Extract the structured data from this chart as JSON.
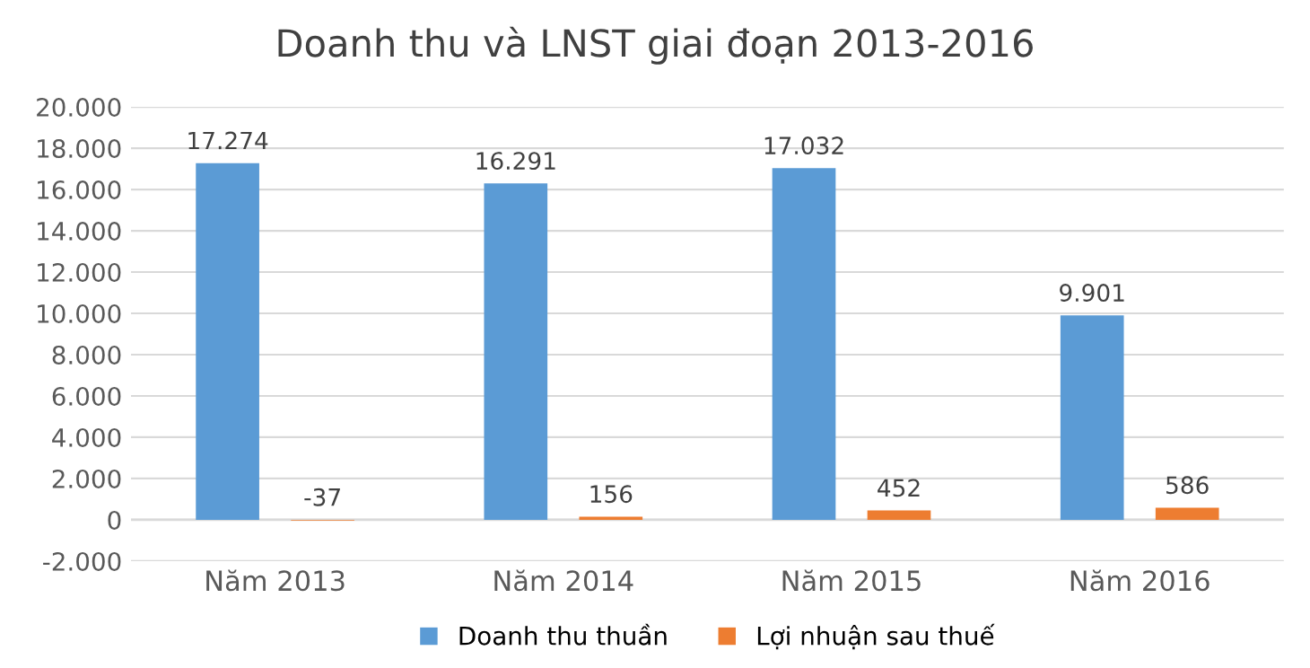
{
  "chart_data": {
    "type": "bar",
    "title": "Doanh thu và LNST giai đoạn 2013-2016",
    "categories": [
      "Năm 2013",
      "Năm 2014",
      "Năm 2015",
      "Năm 2016"
    ],
    "series": [
      {
        "name": "Doanh thu thuần",
        "color": "#5b9bd5",
        "values": [
          17274,
          16291,
          17032,
          9901
        ],
        "value_labels": [
          "17.274",
          "16.291",
          "17.032",
          "9.901"
        ]
      },
      {
        "name": "Lợi nhuận sau thuế",
        "color": "#ed7d31",
        "values": [
          -37,
          156,
          452,
          586
        ],
        "value_labels": [
          "-37",
          "156",
          "452",
          "586"
        ]
      }
    ],
    "ylim": [
      -2000,
      20000
    ],
    "yticks": [
      {
        "value": -2000,
        "label": "-2.000"
      },
      {
        "value": 0,
        "label": "0"
      },
      {
        "value": 2000,
        "label": "2.000"
      },
      {
        "value": 4000,
        "label": "4.000"
      },
      {
        "value": 6000,
        "label": "6.000"
      },
      {
        "value": 8000,
        "label": "8.000"
      },
      {
        "value": 10000,
        "label": "10.000"
      },
      {
        "value": 12000,
        "label": "12.000"
      },
      {
        "value": 14000,
        "label": "14.000"
      },
      {
        "value": 16000,
        "label": "16.000"
      },
      {
        "value": 18000,
        "label": "18.000"
      },
      {
        "value": 20000,
        "label": "20.000"
      }
    ],
    "grid": "y",
    "legend": "bottom"
  }
}
